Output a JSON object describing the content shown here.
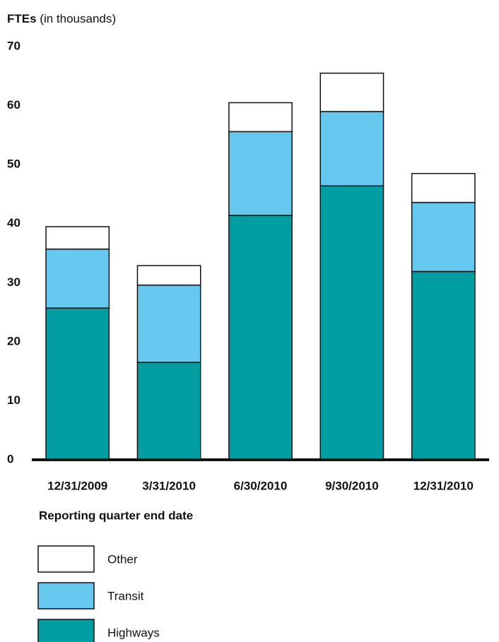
{
  "chart_data": {
    "type": "stacked_bar",
    "ylabel": "FTEs",
    "ylabel_unit": "(in thousands)",
    "xlabel": "Reporting quarter end date",
    "categories": [
      "12/31/2009",
      "3/31/2010",
      "6/30/2010",
      "9/30/2010",
      "12/31/2010"
    ],
    "series": [
      {
        "name": "Highways",
        "color": "#009ea0",
        "values": [
          25.7,
          16.5,
          41.4,
          46.4,
          31.9
        ]
      },
      {
        "name": "Transit",
        "color": "#66c8ef",
        "values": [
          10.0,
          13.1,
          14.2,
          12.6,
          11.7
        ]
      },
      {
        "name": "Other",
        "color": "#ffffff",
        "values": [
          3.8,
          3.3,
          4.9,
          6.5,
          4.9
        ]
      }
    ],
    "ylim": [
      0,
      70
    ],
    "yticks": [
      0,
      10,
      20,
      30,
      40,
      50,
      60,
      70
    ],
    "grid": false
  }
}
